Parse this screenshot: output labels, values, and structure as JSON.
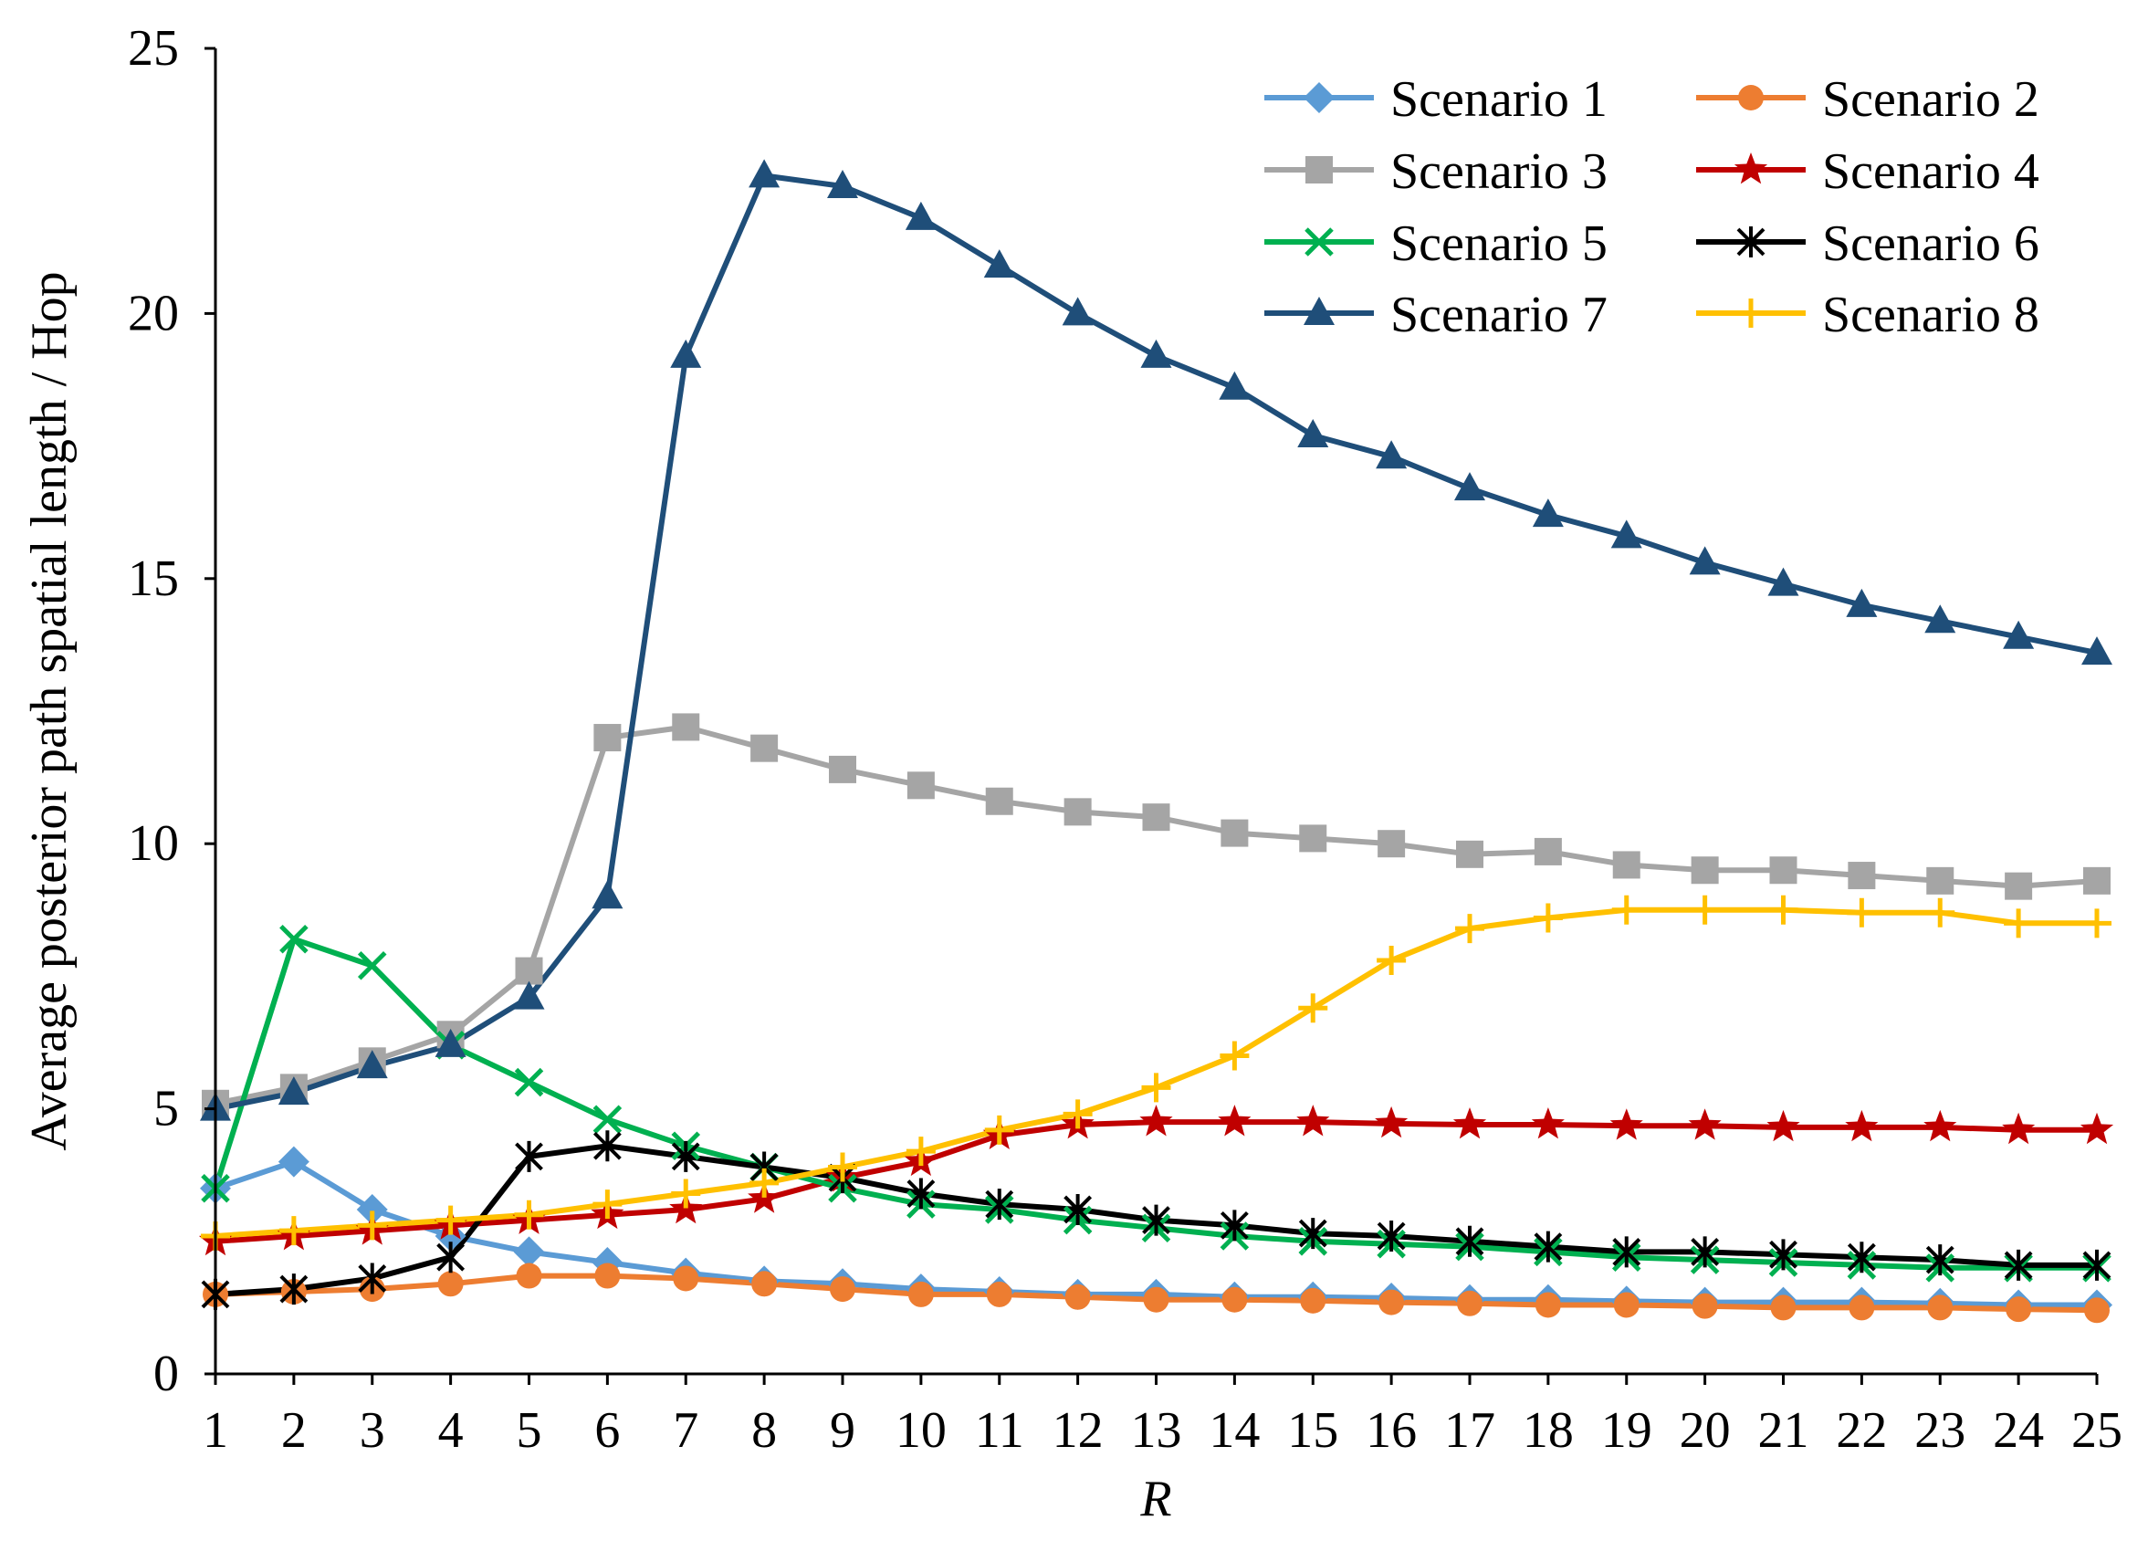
{
  "chart_data": {
    "type": "line",
    "title": "",
    "xlabel": "R",
    "ylabel": "Average posterior path spatial length / Hop",
    "xlim": [
      1,
      25
    ],
    "ylim": [
      0,
      25
    ],
    "x": [
      1,
      2,
      3,
      4,
      5,
      6,
      7,
      8,
      9,
      10,
      11,
      12,
      13,
      14,
      15,
      16,
      17,
      18,
      19,
      20,
      21,
      22,
      23,
      24,
      25
    ],
    "x_ticks": [
      "1",
      "2",
      "3",
      "4",
      "5",
      "6",
      "7",
      "8",
      "9",
      "10",
      "11",
      "12",
      "13",
      "14",
      "15",
      "16",
      "17",
      "18",
      "19",
      "20",
      "21",
      "22",
      "23",
      "24",
      "25"
    ],
    "y_ticks": [
      "0",
      "5",
      "10",
      "15",
      "20",
      "25"
    ],
    "y_tick_values": [
      0,
      5,
      10,
      15,
      20,
      25
    ],
    "grid": false,
    "legend_position": "top-right",
    "series": [
      {
        "name": "Scenario 1",
        "color": "#5B9BD5",
        "marker": "diamond",
        "values": [
          3.5,
          4.0,
          3.1,
          2.6,
          2.3,
          2.1,
          1.9,
          1.75,
          1.7,
          1.6,
          1.55,
          1.5,
          1.5,
          1.45,
          1.45,
          1.43,
          1.4,
          1.4,
          1.37,
          1.35,
          1.35,
          1.35,
          1.33,
          1.3,
          1.3
        ]
      },
      {
        "name": "Scenario 2",
        "color": "#ED7D31",
        "marker": "circle",
        "values": [
          1.5,
          1.55,
          1.6,
          1.7,
          1.85,
          1.85,
          1.8,
          1.7,
          1.6,
          1.5,
          1.5,
          1.45,
          1.4,
          1.4,
          1.38,
          1.35,
          1.33,
          1.3,
          1.3,
          1.28,
          1.25,
          1.25,
          1.25,
          1.22,
          1.2
        ]
      },
      {
        "name": "Scenario 3",
        "color": "#A5A5A5",
        "marker": "square",
        "values": [
          5.1,
          5.4,
          5.9,
          6.4,
          7.6,
          12.0,
          12.2,
          11.8,
          11.4,
          11.1,
          10.8,
          10.6,
          10.5,
          10.2,
          10.1,
          10.0,
          9.8,
          9.85,
          9.6,
          9.5,
          9.5,
          9.4,
          9.3,
          9.2,
          9.3
        ]
      },
      {
        "name": "Scenario 4",
        "color": "#C00000",
        "marker": "star",
        "values": [
          2.5,
          2.6,
          2.7,
          2.8,
          2.9,
          3.0,
          3.1,
          3.3,
          3.7,
          4.0,
          4.5,
          4.7,
          4.75,
          4.75,
          4.75,
          4.72,
          4.7,
          4.7,
          4.68,
          4.68,
          4.65,
          4.65,
          4.65,
          4.6,
          4.6
        ]
      },
      {
        "name": "Scenario 5",
        "color": "#00B050",
        "marker": "x",
        "values": [
          3.5,
          8.2,
          7.7,
          6.2,
          5.5,
          4.8,
          4.3,
          3.9,
          3.5,
          3.2,
          3.1,
          2.9,
          2.75,
          2.6,
          2.5,
          2.45,
          2.4,
          2.3,
          2.2,
          2.15,
          2.1,
          2.05,
          2.0,
          2.0,
          2.0
        ]
      },
      {
        "name": "Scenario 6",
        "color": "#000000",
        "marker": "asterisk",
        "values": [
          1.5,
          1.6,
          1.8,
          2.2,
          4.1,
          4.3,
          4.1,
          3.9,
          3.7,
          3.4,
          3.2,
          3.1,
          2.9,
          2.8,
          2.65,
          2.6,
          2.5,
          2.4,
          2.3,
          2.3,
          2.25,
          2.2,
          2.15,
          2.05,
          2.05
        ]
      },
      {
        "name": "Scenario 7",
        "color": "#1F4E79",
        "marker": "triangle",
        "values": [
          5.0,
          5.3,
          5.8,
          6.2,
          7.1,
          9.0,
          19.2,
          22.6,
          22.4,
          21.8,
          20.9,
          20.0,
          19.2,
          18.6,
          17.7,
          17.3,
          16.7,
          16.2,
          15.8,
          15.3,
          14.9,
          14.5,
          14.2,
          13.9,
          13.6
        ]
      },
      {
        "name": "Scenario 8",
        "color": "#FFC000",
        "marker": "plus",
        "values": [
          2.6,
          2.7,
          2.8,
          2.9,
          3.0,
          3.2,
          3.4,
          3.6,
          3.9,
          4.2,
          4.6,
          4.9,
          5.4,
          6.0,
          6.9,
          7.8,
          8.4,
          8.6,
          8.75,
          8.75,
          8.75,
          8.7,
          8.7,
          8.5,
          8.5
        ]
      }
    ]
  }
}
